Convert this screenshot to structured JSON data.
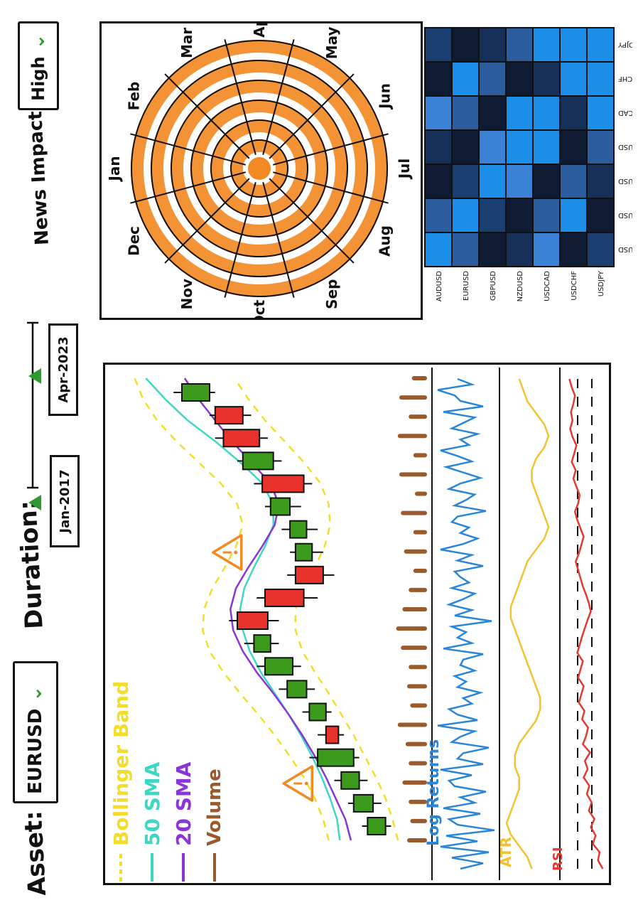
{
  "controls": {
    "asset_label": "Asset:",
    "asset_value": "EURUSD",
    "duration_label": "Duration:",
    "start_date": "Jan-2017",
    "end_date": "Apr-2023",
    "news_label": "News Impact",
    "news_value": "High"
  },
  "legend": {
    "items": [
      {
        "label": "Bollinger Band",
        "color": "#f2de2a",
        "style": "dashed"
      },
      {
        "label": "50 SMA",
        "color": "#3fd6c4",
        "style": "solid"
      },
      {
        "label": "20 SMA",
        "color": "#8a35d8",
        "style": "solid"
      },
      {
        "label": "Volume",
        "color": "#9a5a2c",
        "style": "solid"
      }
    ]
  },
  "subplots": {
    "log_returns_label": "Log Returns",
    "atr_label": "ATR",
    "rsi_label": "RSI"
  },
  "colors": {
    "bull": "#3c9a1c",
    "bear": "#e8322c",
    "orange": "#f28a24",
    "returns": "#2a86d8",
    "atr": "#f2c230",
    "rsi": "#e03a32",
    "accent_green": "#2e9a2e"
  },
  "icons": {
    "alert": "warning-triangle-icon",
    "dropdown": "chevron-down-icon",
    "slider_handle": "slider-handle-icon"
  },
  "radial": {
    "months": [
      "Jan",
      "Feb",
      "Mar",
      "Apr",
      "May",
      "Jun",
      "Jul",
      "Aug",
      "Sep",
      "Oct",
      "Nov",
      "Dec"
    ],
    "rings": 6
  },
  "heatmap": {
    "pairs": [
      "AUDUSD",
      "EURUSD",
      "GBPUSD",
      "NZDUSD",
      "USDCAD",
      "USDCHF",
      "USDJPY"
    ],
    "values": [
      [
        1.0,
        0.3,
        0.0,
        0.1,
        0.4,
        0.0,
        0.2
      ],
      [
        0.3,
        1.0,
        0.2,
        0.0,
        0.3,
        0.9,
        0.0
      ],
      [
        0.0,
        0.2,
        1.0,
        0.4,
        0.0,
        0.3,
        0.1
      ],
      [
        0.1,
        0.0,
        0.4,
        1.0,
        0.9,
        0.0,
        0.3
      ],
      [
        0.4,
        0.3,
        0.0,
        0.9,
        1.0,
        0.1,
        0.9
      ],
      [
        0.0,
        0.9,
        0.3,
        0.0,
        0.1,
        1.0,
        0.9
      ],
      [
        0.2,
        0.0,
        0.1,
        0.3,
        0.9,
        0.9,
        1.0
      ]
    ]
  },
  "chart_data": {
    "type": "candlestick",
    "candles": [
      {
        "o": 1.3,
        "c": 2.6,
        "h": 3.0,
        "l": 0.9
      },
      {
        "o": 2.2,
        "c": 3.6,
        "h": 4.0,
        "l": 1.6
      },
      {
        "o": 3.2,
        "c": 4.5,
        "h": 5.0,
        "l": 2.6
      },
      {
        "o": 3.6,
        "c": 6.2,
        "h": 6.8,
        "l": 3.2
      },
      {
        "o": 5.6,
        "c": 4.7,
        "h": 6.2,
        "l": 4.3
      },
      {
        "o": 5.6,
        "c": 6.8,
        "h": 7.3,
        "l": 5.2
      },
      {
        "o": 7.0,
        "c": 8.4,
        "h": 9.0,
        "l": 6.4
      },
      {
        "o": 8.0,
        "c": 10.0,
        "h": 10.6,
        "l": 7.4
      },
      {
        "o": 9.6,
        "c": 10.8,
        "h": 11.5,
        "l": 9.0
      },
      {
        "o": 12.0,
        "c": 9.8,
        "h": 12.6,
        "l": 9.0
      },
      {
        "o": 10.0,
        "c": 7.2,
        "h": 10.6,
        "l": 6.2
      },
      {
        "o": 7.8,
        "c": 5.8,
        "h": 8.4,
        "l": 5.0
      },
      {
        "o": 6.6,
        "c": 7.8,
        "h": 8.2,
        "l": 5.8
      },
      {
        "o": 7.0,
        "c": 8.2,
        "h": 8.8,
        "l": 6.2
      },
      {
        "o": 8.2,
        "c": 9.6,
        "h": 10.0,
        "l": 7.4
      },
      {
        "o": 10.2,
        "c": 7.2,
        "h": 10.8,
        "l": 6.6
      },
      {
        "o": 9.4,
        "c": 11.6,
        "h": 12.0,
        "l": 8.8
      },
      {
        "o": 13.0,
        "c": 10.4,
        "h": 13.6,
        "l": 9.8
      },
      {
        "o": 13.6,
        "c": 11.6,
        "h": 14.0,
        "l": 11.0
      },
      {
        "o": 14.0,
        "c": 16.0,
        "h": 16.6,
        "l": 13.6
      }
    ],
    "volume": [
      1.0,
      0.8,
      0.9,
      1.3,
      0.9,
      1.1,
      1.6,
      0.8,
      1.0,
      0.9,
      1.4,
      1.7,
      1.3,
      0.9,
      0.6,
      1.2,
      0.6,
      1.4,
      0.5,
      1.5,
      0.6,
      1.6,
      0.9,
      1.5,
      0.7
    ],
    "sma20": [
      3.8,
      4.2,
      4.9,
      5.6,
      6.4,
      7.3,
      8.3,
      9.4,
      10.6,
      11.6,
      12.3,
      12.5,
      12.1,
      11.2,
      10.2,
      9.3,
      9.0,
      9.6,
      11.0,
      12.4,
      13.6,
      14.8,
      15.8
    ],
    "sma50": [
      4.6,
      4.8,
      5.3,
      5.9,
      6.6,
      7.4,
      8.3,
      9.3,
      10.3,
      11.1,
      11.6,
      11.8,
      11.5,
      10.8,
      10.0,
      9.4,
      9.4,
      10.2,
      11.8,
      13.6,
      15.6,
      17.2,
      18.6
    ],
    "boll_upper": [
      5.4,
      5.8,
      6.4,
      7.2,
      8.2,
      9.3,
      10.5,
      11.8,
      13.0,
      14.0,
      14.5,
      14.4,
      13.8,
      12.9,
      12.1,
      11.6,
      12.0,
      13.2,
      14.8,
      16.4,
      17.8,
      18.8,
      19.4
    ],
    "boll_lower": [
      0.4,
      0.8,
      1.3,
      2.0,
      2.8,
      3.6,
      4.5,
      5.4,
      6.4,
      7.3,
      7.8,
      7.8,
      7.2,
      6.4,
      5.7,
      5.3,
      5.4,
      6.0,
      7.2,
      8.6,
      10.0,
      11.2,
      12.2
    ],
    "log_returns": [
      0.2,
      -0.6,
      0.5,
      -0.8,
      0.9,
      -0.4,
      0.7,
      -1.0,
      0.3,
      0.6,
      -0.5,
      0.8,
      -0.3,
      0.2,
      -0.7,
      0.4,
      0.6,
      -0.2,
      0.9,
      -0.6,
      0.3,
      0.1,
      -0.8,
      0.5,
      0.2,
      -0.3,
      1.0,
      -0.4,
      0.3,
      0.6,
      -0.2,
      0.1,
      -0.5,
      0.3,
      0.0,
      0.4,
      -0.3,
      0.2,
      0.1,
      -0.6,
      0.8,
      -0.2,
      0.3,
      0.0,
      0.5,
      -0.9,
      0.4,
      -0.2,
      0.6,
      0.1,
      -0.3,
      0.5,
      -0.1,
      0.2,
      0.4,
      -0.6,
      0.3,
      -0.2,
      0.9,
      0.1,
      -0.4,
      0.2,
      -0.1,
      0.5,
      0.3,
      -0.7,
      0.4,
      0.0,
      -0.3,
      0.6,
      0.2,
      -0.5,
      0.1,
      0.7,
      -0.2,
      0.3,
      0.9,
      -0.1,
      0.2,
      -0.4,
      0.5,
      0.1,
      -0.3,
      0.8,
      -0.6,
      0.2,
      0.4,
      1.0,
      -0.2,
      0.3
    ],
    "atr": [
      0.5,
      0.6,
      0.8,
      1.0,
      1.1,
      1.0,
      0.9,
      0.8,
      0.8,
      0.9,
      0.9,
      0.8,
      0.6,
      0.4,
      0.3,
      0.3,
      0.4,
      0.5,
      0.6,
      0.7,
      0.8,
      0.9,
      1.0,
      1.0,
      0.9,
      0.8,
      0.7,
      0.6,
      0.4,
      0.2,
      0.1,
      0.2,
      0.3,
      0.4,
      0.5,
      0.5,
      0.4,
      0.2,
      0.1,
      0.2,
      0.4,
      0.6,
      0.7,
      0.8
    ],
    "rsi": [
      10,
      22,
      18,
      35,
      28,
      40,
      31,
      45,
      38,
      50,
      44,
      58,
      48,
      55,
      42,
      60,
      52,
      47,
      62,
      56,
      70,
      64,
      58,
      72,
      66,
      60,
      74,
      68,
      62,
      55,
      48,
      40,
      45,
      52,
      60,
      66,
      72,
      78,
      70,
      64,
      58,
      66,
      74,
      80,
      72,
      68,
      76,
      84,
      78,
      88,
      82,
      76,
      86,
      92,
      86,
      90,
      84,
      80,
      88,
      94
    ],
    "alerts": [
      6.5,
      11.6
    ]
  }
}
